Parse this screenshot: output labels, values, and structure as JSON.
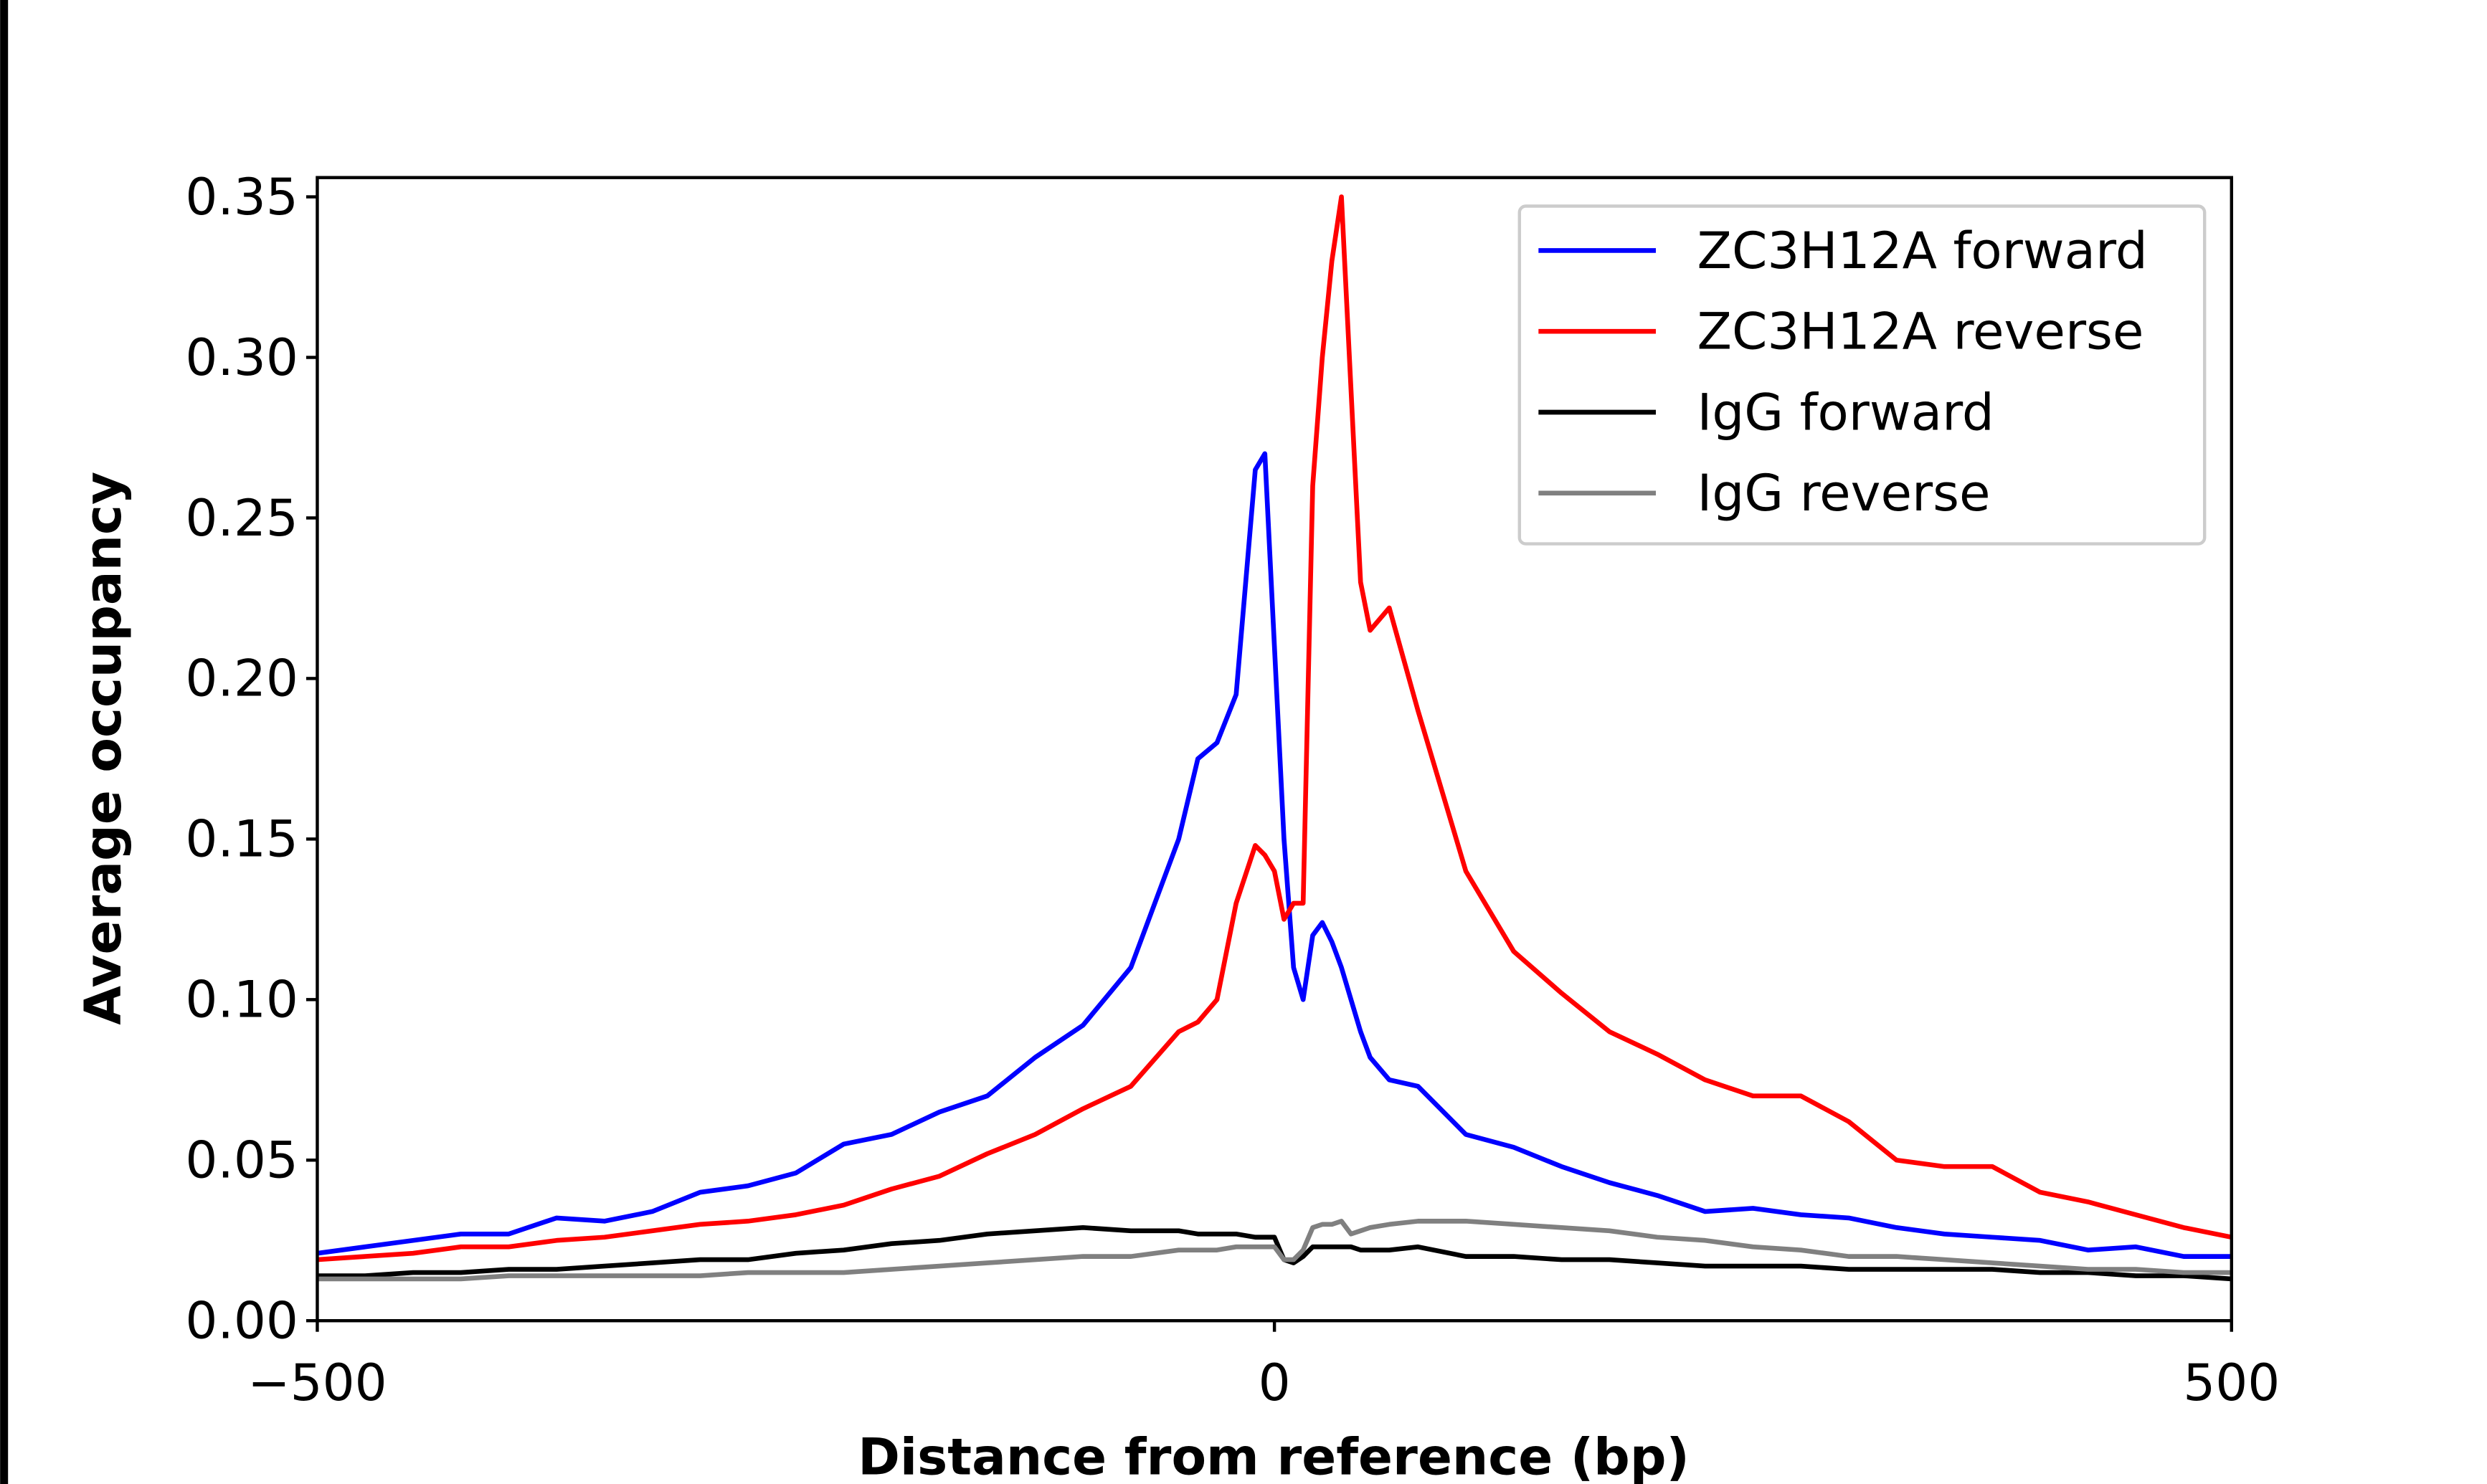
{
  "chart_data": {
    "type": "line",
    "xlabel": "Distance from reference (bp)",
    "ylabel": "Average occupancy",
    "x": [
      -500,
      -475,
      -450,
      -425,
      -400,
      -375,
      -350,
      -325,
      -300,
      -275,
      -250,
      -225,
      -200,
      -175,
      -150,
      -125,
      -100,
      -75,
      -50,
      -40,
      -30,
      -20,
      -10,
      -5,
      0,
      5,
      10,
      15,
      20,
      25,
      30,
      35,
      40,
      45,
      50,
      60,
      75,
      100,
      125,
      150,
      175,
      200,
      225,
      250,
      275,
      300,
      325,
      350,
      375,
      400,
      425,
      450,
      475,
      500
    ],
    "series": [
      {
        "name": "ZC3H12A forward",
        "color": "#0000ff",
        "values": [
          0.021,
          0.023,
          0.025,
          0.027,
          0.027,
          0.032,
          0.031,
          0.034,
          0.04,
          0.042,
          0.046,
          0.055,
          0.058,
          0.065,
          0.07,
          0.082,
          0.092,
          0.11,
          0.15,
          0.175,
          0.18,
          0.195,
          0.265,
          0.27,
          0.21,
          0.15,
          0.11,
          0.1,
          0.12,
          0.124,
          0.118,
          0.11,
          0.1,
          0.09,
          0.082,
          0.075,
          0.073,
          0.058,
          0.054,
          0.048,
          0.043,
          0.039,
          0.034,
          0.035,
          0.033,
          0.032,
          0.029,
          0.027,
          0.026,
          0.025,
          0.022,
          0.023,
          0.02,
          0.02
        ]
      },
      {
        "name": "ZC3H12A reverse",
        "color": "#ff0000",
        "values": [
          0.019,
          0.02,
          0.021,
          0.023,
          0.023,
          0.025,
          0.026,
          0.028,
          0.03,
          0.031,
          0.033,
          0.036,
          0.041,
          0.045,
          0.052,
          0.058,
          0.066,
          0.073,
          0.09,
          0.093,
          0.1,
          0.13,
          0.148,
          0.145,
          0.14,
          0.125,
          0.13,
          0.13,
          0.26,
          0.3,
          0.33,
          0.35,
          0.29,
          0.23,
          0.215,
          0.222,
          0.19,
          0.14,
          0.115,
          0.102,
          0.09,
          0.083,
          0.075,
          0.07,
          0.07,
          0.062,
          0.05,
          0.048,
          0.048,
          0.04,
          0.037,
          0.033,
          0.029,
          0.026
        ]
      },
      {
        "name": "IgG forward",
        "color": "#000000",
        "values": [
          0.014,
          0.014,
          0.015,
          0.015,
          0.016,
          0.016,
          0.017,
          0.018,
          0.019,
          0.019,
          0.021,
          0.022,
          0.024,
          0.025,
          0.027,
          0.028,
          0.029,
          0.028,
          0.028,
          0.027,
          0.027,
          0.027,
          0.026,
          0.026,
          0.026,
          0.019,
          0.018,
          0.02,
          0.023,
          0.023,
          0.023,
          0.023,
          0.023,
          0.022,
          0.022,
          0.022,
          0.023,
          0.02,
          0.02,
          0.019,
          0.019,
          0.018,
          0.017,
          0.017,
          0.017,
          0.016,
          0.016,
          0.016,
          0.016,
          0.015,
          0.015,
          0.014,
          0.014,
          0.013
        ]
      },
      {
        "name": "IgG reverse",
        "color": "#808080",
        "values": [
          0.013,
          0.013,
          0.013,
          0.013,
          0.014,
          0.014,
          0.014,
          0.014,
          0.014,
          0.015,
          0.015,
          0.015,
          0.016,
          0.017,
          0.018,
          0.019,
          0.02,
          0.02,
          0.022,
          0.022,
          0.022,
          0.023,
          0.023,
          0.023,
          0.023,
          0.019,
          0.019,
          0.022,
          0.029,
          0.03,
          0.03,
          0.031,
          0.027,
          0.028,
          0.029,
          0.03,
          0.031,
          0.031,
          0.03,
          0.029,
          0.028,
          0.026,
          0.025,
          0.023,
          0.022,
          0.02,
          0.02,
          0.019,
          0.018,
          0.017,
          0.016,
          0.016,
          0.015,
          0.015
        ]
      }
    ],
    "xlim": [
      -500,
      500
    ],
    "xticks": [
      {
        "value": -500,
        "label": "−500"
      },
      0,
      500
    ],
    "ylim": [
      0,
      0.356
    ],
    "yticks": [
      {
        "value": 0,
        "label": "0.00"
      },
      {
        "value": 0.05,
        "label": "0.05"
      },
      {
        "value": 0.1,
        "label": "0.10"
      },
      {
        "value": 0.15,
        "label": "0.15"
      },
      {
        "value": 0.2,
        "label": "0.20"
      },
      {
        "value": 0.25,
        "label": "0.25"
      },
      {
        "value": 0.3,
        "label": "0.30"
      },
      {
        "value": 0.35,
        "label": "0.35"
      }
    ],
    "legend": "upper right"
  }
}
